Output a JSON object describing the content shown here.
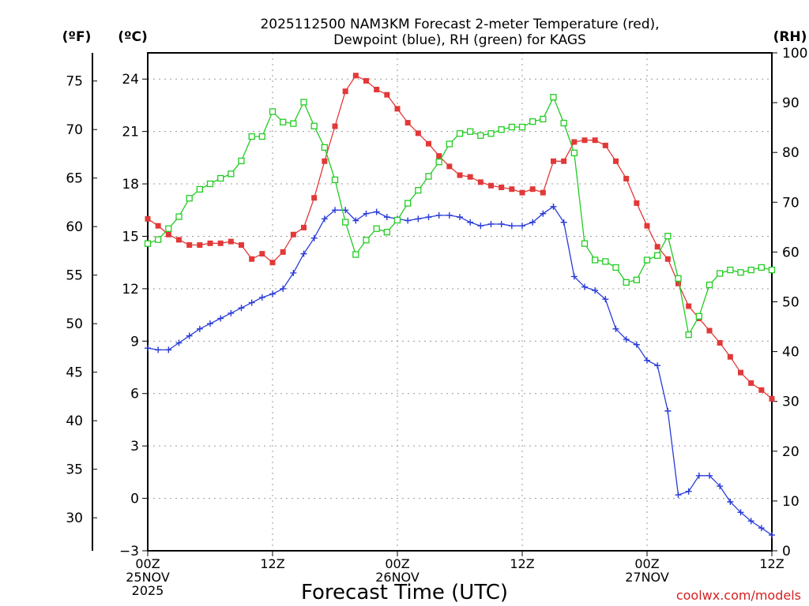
{
  "colors": {
    "temp": "#e23838",
    "dew": "#2a3cd8",
    "rh": "#22cc22",
    "credit": "#d62020"
  },
  "chart_data": {
    "type": "line",
    "title": "2025112500 NAM3KM Forecast 2-meter Temperature (red),",
    "title_line2": "Dewpoint (blue), RH (green) for KAGS",
    "xlabel": "Forecast Time (UTC)",
    "credit": "coolwx.com/models",
    "unit_f": "(ºF)",
    "unit_c": "(ºC)",
    "unit_rh": "(RH)",
    "x_range": [
      0,
      60
    ],
    "y_c_range": [
      -3,
      25.5
    ],
    "y_rh_range": [
      0,
      100
    ],
    "x_ticks": [
      {
        "x": 0,
        "lines": [
          "00Z",
          "25NOV",
          "2025"
        ]
      },
      {
        "x": 12,
        "lines": [
          "12Z"
        ]
      },
      {
        "x": 24,
        "lines": [
          "00Z",
          "26NOV"
        ]
      },
      {
        "x": 36,
        "lines": [
          "12Z"
        ]
      },
      {
        "x": 48,
        "lines": [
          "00Z",
          "27NOV"
        ]
      },
      {
        "x": 60,
        "lines": [
          "12Z"
        ]
      }
    ],
    "c_ticks": [
      -3,
      0,
      3,
      6,
      9,
      12,
      15,
      18,
      21,
      24
    ],
    "f_ticks": [
      30,
      35,
      40,
      45,
      50,
      55,
      60,
      65,
      70,
      75
    ],
    "rh_ticks": [
      0,
      10,
      20,
      30,
      40,
      50,
      60,
      70,
      80,
      90,
      100
    ],
    "series": [
      {
        "name": "2-meter Temperature",
        "unit": "C",
        "color": "red",
        "marker": "filled-square",
        "x": [
          0,
          1,
          2,
          3,
          4,
          5,
          6,
          7,
          8,
          9,
          10,
          11,
          12,
          13,
          14,
          15,
          16,
          17,
          18,
          19,
          20,
          21,
          22,
          23,
          24,
          25,
          26,
          27,
          28,
          29,
          30,
          31,
          32,
          33,
          34,
          35,
          36,
          37,
          38,
          39,
          40,
          41,
          42,
          43,
          44,
          45,
          46,
          47,
          48,
          49,
          50,
          51,
          52,
          53,
          54,
          55,
          56,
          57,
          58,
          59,
          60
        ],
        "values": [
          16.0,
          15.6,
          15.1,
          14.8,
          14.5,
          14.5,
          14.6,
          14.6,
          14.7,
          14.5,
          13.7,
          14.0,
          13.5,
          14.1,
          15.1,
          15.5,
          17.2,
          19.3,
          21.3,
          23.3,
          24.2,
          23.9,
          23.4,
          23.1,
          22.3,
          21.5,
          20.9,
          20.3,
          19.6,
          19.0,
          18.5,
          18.4,
          18.1,
          17.9,
          17.8,
          17.7,
          17.5,
          17.7,
          17.5,
          19.3,
          19.3,
          20.4,
          20.5,
          20.5,
          20.2,
          19.3,
          18.3,
          16.9,
          15.6,
          14.4,
          13.7,
          12.3,
          11.0,
          10.3,
          9.6,
          8.9,
          8.1,
          7.2,
          6.6,
          6.2,
          5.7
        ]
      },
      {
        "name": "Dewpoint",
        "unit": "C",
        "color": "blue",
        "marker": "plus",
        "x": [
          0,
          1,
          2,
          3,
          4,
          5,
          6,
          7,
          8,
          9,
          10,
          11,
          12,
          13,
          14,
          15,
          16,
          17,
          18,
          19,
          20,
          21,
          22,
          23,
          24,
          25,
          26,
          27,
          28,
          29,
          30,
          31,
          32,
          33,
          34,
          35,
          36,
          37,
          38,
          39,
          40,
          41,
          42,
          43,
          44,
          45,
          46,
          47,
          48,
          49,
          50,
          51,
          52,
          53,
          54,
          55,
          56,
          57,
          58,
          59,
          60
        ],
        "values": [
          8.6,
          8.5,
          8.5,
          8.9,
          9.3,
          9.7,
          10.0,
          10.3,
          10.6,
          10.9,
          11.2,
          11.5,
          11.7,
          12.0,
          12.9,
          14.0,
          14.9,
          16.0,
          16.5,
          16.5,
          15.9,
          16.3,
          16.4,
          16.1,
          16.0,
          15.9,
          16.0,
          16.1,
          16.2,
          16.2,
          16.1,
          15.8,
          15.6,
          15.7,
          15.7,
          15.6,
          15.6,
          15.8,
          16.3,
          16.7,
          15.8,
          12.7,
          12.1,
          11.9,
          11.4,
          9.7,
          9.1,
          8.8,
          7.9,
          7.6,
          5.0,
          0.2,
          0.4,
          1.3,
          1.3,
          0.7,
          -0.2,
          -0.8,
          -1.3,
          -1.7,
          -2.1
        ]
      },
      {
        "name": "RH",
        "unit": "%",
        "color": "green",
        "marker": "open-square",
        "x": [
          0,
          1,
          2,
          3,
          4,
          5,
          6,
          7,
          8,
          9,
          10,
          11,
          12,
          13,
          14,
          15,
          16,
          17,
          18,
          19,
          20,
          21,
          22,
          23,
          24,
          25,
          26,
          27,
          28,
          29,
          30,
          31,
          32,
          33,
          34,
          35,
          36,
          37,
          38,
          39,
          40,
          41,
          42,
          43,
          44,
          45,
          46,
          47,
          48,
          49,
          50,
          51,
          52,
          53,
          54,
          55,
          56,
          57,
          58,
          59,
          60
        ],
        "values": [
          61.7,
          62.5,
          64.7,
          67.1,
          70.8,
          72.6,
          73.7,
          74.8,
          75.7,
          78.3,
          83.2,
          83.2,
          88.2,
          86.1,
          85.8,
          90.1,
          85.3,
          81.0,
          74.5,
          66.0,
          59.5,
          62.4,
          64.7,
          64.0,
          66.4,
          69.8,
          72.4,
          75.2,
          78.1,
          81.7,
          83.8,
          84.2,
          83.4,
          83.8,
          84.6,
          85.1,
          85.1,
          86.2,
          86.7,
          91.1,
          85.9,
          79.9,
          61.7,
          58.4,
          58.1,
          56.9,
          53.9,
          54.4,
          58.4,
          59.3,
          63.2,
          54.7,
          43.4,
          47.1,
          53.4,
          55.7,
          56.4,
          55.9,
          56.4,
          56.9,
          56.4
        ]
      }
    ]
  }
}
